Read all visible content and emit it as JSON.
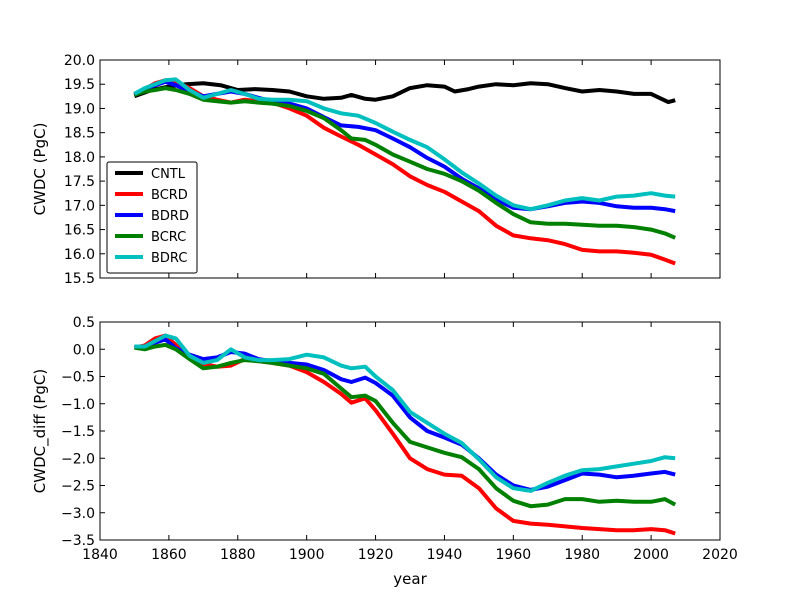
{
  "chart_data": [
    {
      "type": "line",
      "title": "",
      "xlabel": "",
      "ylabel": "CWDC (PgC)",
      "xlim": [
        1840,
        2020
      ],
      "ylim": [
        15.5,
        20.0
      ],
      "xticks": [
        1840,
        1860,
        1880,
        1900,
        1920,
        1940,
        1960,
        1980,
        2000,
        2020
      ],
      "xtick_labels": [
        "",
        "",
        "",
        "",
        "",
        "",
        "",
        "",
        "",
        ""
      ],
      "yticks": [
        15.5,
        16.0,
        16.5,
        17.0,
        17.5,
        18.0,
        18.5,
        19.0,
        19.5,
        20.0
      ],
      "ytick_labels": [
        "15.5",
        "16.0",
        "16.5",
        "17.0",
        "17.5",
        "18.0",
        "18.5",
        "19.0",
        "19.5",
        "20.0"
      ],
      "legend_location": "lower-left",
      "series": [
        {
          "name": "CNTL",
          "color": "#000000",
          "x": [
            1850,
            1855,
            1860,
            1865,
            1870,
            1875,
            1880,
            1885,
            1890,
            1895,
            1900,
            1905,
            1910,
            1913,
            1917,
            1920,
            1925,
            1930,
            1935,
            1940,
            1943,
            1947,
            1950,
            1955,
            1960,
            1965,
            1970,
            1975,
            1980,
            1985,
            1990,
            1995,
            2000,
            2003,
            2005,
            2007
          ],
          "y": [
            19.25,
            19.38,
            19.45,
            19.5,
            19.52,
            19.48,
            19.38,
            19.4,
            19.38,
            19.35,
            19.25,
            19.2,
            19.22,
            19.28,
            19.2,
            19.18,
            19.25,
            19.42,
            19.48,
            19.45,
            19.35,
            19.4,
            19.45,
            19.5,
            19.48,
            19.52,
            19.5,
            19.42,
            19.35,
            19.38,
            19.35,
            19.3,
            19.3,
            19.2,
            19.13,
            19.17
          ]
        },
        {
          "name": "BCRD",
          "color": "#ff0000",
          "x": [
            1850,
            1853,
            1856,
            1859,
            1862,
            1866,
            1870,
            1874,
            1878,
            1882,
            1886,
            1890,
            1895,
            1900,
            1905,
            1910,
            1915,
            1920,
            1925,
            1930,
            1935,
            1940,
            1945,
            1950,
            1955,
            1960,
            1965,
            1970,
            1975,
            1980,
            1985,
            1990,
            1995,
            2000,
            2004,
            2007
          ],
          "y": [
            19.28,
            19.4,
            19.52,
            19.58,
            19.55,
            19.42,
            19.25,
            19.18,
            19.12,
            19.18,
            19.15,
            19.12,
            19.0,
            18.85,
            18.6,
            18.42,
            18.25,
            18.05,
            17.85,
            17.6,
            17.42,
            17.28,
            17.08,
            16.88,
            16.58,
            16.38,
            16.32,
            16.28,
            16.2,
            16.08,
            16.05,
            16.05,
            16.02,
            15.98,
            15.88,
            15.8
          ]
        },
        {
          "name": "BDRD",
          "color": "#0000ff",
          "x": [
            1850,
            1853,
            1856,
            1859,
            1862,
            1866,
            1870,
            1874,
            1878,
            1882,
            1886,
            1890,
            1895,
            1900,
            1905,
            1910,
            1915,
            1920,
            1925,
            1930,
            1935,
            1940,
            1945,
            1950,
            1955,
            1960,
            1965,
            1970,
            1975,
            1980,
            1985,
            1990,
            1995,
            2000,
            2004,
            2007
          ],
          "y": [
            19.3,
            19.4,
            19.48,
            19.55,
            19.48,
            19.35,
            19.25,
            19.3,
            19.35,
            19.3,
            19.22,
            19.15,
            19.1,
            19.0,
            18.82,
            18.65,
            18.62,
            18.55,
            18.38,
            18.2,
            17.98,
            17.8,
            17.55,
            17.35,
            17.12,
            16.95,
            16.92,
            16.98,
            17.05,
            17.08,
            17.05,
            16.98,
            16.95,
            16.95,
            16.92,
            16.88
          ]
        },
        {
          "name": "BCRC",
          "color": "#008000",
          "x": [
            1850,
            1853,
            1856,
            1859,
            1862,
            1866,
            1870,
            1874,
            1878,
            1882,
            1886,
            1890,
            1895,
            1900,
            1905,
            1910,
            1913,
            1917,
            1920,
            1925,
            1930,
            1935,
            1940,
            1945,
            1950,
            1955,
            1960,
            1965,
            1970,
            1975,
            1980,
            1985,
            1990,
            1995,
            2000,
            2004,
            2007
          ],
          "y": [
            19.28,
            19.35,
            19.38,
            19.42,
            19.38,
            19.3,
            19.18,
            19.15,
            19.12,
            19.15,
            19.12,
            19.1,
            19.05,
            18.95,
            18.8,
            18.55,
            18.38,
            18.35,
            18.25,
            18.05,
            17.9,
            17.75,
            17.65,
            17.5,
            17.3,
            17.05,
            16.82,
            16.65,
            16.62,
            16.62,
            16.6,
            16.58,
            16.58,
            16.55,
            16.5,
            16.42,
            16.33
          ]
        },
        {
          "name": "BDRC",
          "color": "#00bfbf",
          "x": [
            1850,
            1853,
            1856,
            1859,
            1862,
            1866,
            1870,
            1874,
            1878,
            1882,
            1886,
            1890,
            1895,
            1900,
            1905,
            1910,
            1915,
            1920,
            1925,
            1930,
            1935,
            1940,
            1945,
            1950,
            1955,
            1960,
            1965,
            1970,
            1975,
            1980,
            1985,
            1990,
            1995,
            2000,
            2004,
            2007
          ],
          "y": [
            19.3,
            19.42,
            19.5,
            19.58,
            19.6,
            19.38,
            19.22,
            19.3,
            19.38,
            19.3,
            19.2,
            19.18,
            19.18,
            19.15,
            19.0,
            18.9,
            18.85,
            18.7,
            18.52,
            18.35,
            18.2,
            17.95,
            17.68,
            17.45,
            17.2,
            17.0,
            16.92,
            17.0,
            17.1,
            17.15,
            17.1,
            17.18,
            17.2,
            17.25,
            17.2,
            17.18
          ]
        }
      ]
    },
    {
      "type": "line",
      "title": "",
      "xlabel": "year",
      "ylabel": "CWDC_diff (PgC)",
      "xlim": [
        1840,
        2020
      ],
      "ylim": [
        -3.5,
        0.5
      ],
      "xticks": [
        1840,
        1860,
        1880,
        1900,
        1920,
        1940,
        1960,
        1980,
        2000,
        2020
      ],
      "xtick_labels": [
        "1840",
        "1860",
        "1880",
        "1900",
        "1920",
        "1940",
        "1960",
        "1980",
        "2000",
        "2020"
      ],
      "yticks": [
        -3.5,
        -3.0,
        -2.5,
        -2.0,
        -1.5,
        -1.0,
        -0.5,
        0.0,
        0.5
      ],
      "ytick_labels": [
        "−3.5",
        "−3.0",
        "−2.5",
        "−2.0",
        "−1.5",
        "−1.0",
        "−0.5",
        "0.0",
        "0.5"
      ],
      "series": [
        {
          "name": "BCRD",
          "color": "#ff0000",
          "x": [
            1850,
            1853,
            1856,
            1859,
            1862,
            1866,
            1870,
            1874,
            1878,
            1882,
            1886,
            1890,
            1895,
            1900,
            1905,
            1910,
            1913,
            1917,
            1920,
            1925,
            1930,
            1935,
            1940,
            1945,
            1950,
            1955,
            1960,
            1965,
            1970,
            1975,
            1980,
            1985,
            1990,
            1995,
            2000,
            2004,
            2007
          ],
          "y": [
            0.03,
            0.07,
            0.2,
            0.25,
            0.08,
            -0.12,
            -0.27,
            -0.32,
            -0.3,
            -0.18,
            -0.22,
            -0.25,
            -0.3,
            -0.42,
            -0.6,
            -0.82,
            -0.98,
            -0.9,
            -1.12,
            -1.55,
            -2.0,
            -2.2,
            -2.3,
            -2.32,
            -2.55,
            -2.92,
            -3.15,
            -3.2,
            -3.22,
            -3.25,
            -3.28,
            -3.3,
            -3.32,
            -3.32,
            -3.3,
            -3.32,
            -3.38
          ]
        },
        {
          "name": "BDRD",
          "color": "#0000ff",
          "x": [
            1850,
            1853,
            1856,
            1859,
            1862,
            1866,
            1870,
            1874,
            1878,
            1882,
            1886,
            1890,
            1895,
            1900,
            1905,
            1910,
            1913,
            1917,
            1920,
            1925,
            1930,
            1935,
            1940,
            1945,
            1950,
            1955,
            1960,
            1965,
            1970,
            1975,
            1980,
            1985,
            1990,
            1995,
            2000,
            2004,
            2007
          ],
          "y": [
            0.05,
            0.03,
            0.12,
            0.18,
            0.02,
            -0.1,
            -0.18,
            -0.15,
            -0.05,
            -0.08,
            -0.18,
            -0.22,
            -0.25,
            -0.28,
            -0.38,
            -0.55,
            -0.6,
            -0.52,
            -0.62,
            -0.85,
            -1.25,
            -1.5,
            -1.62,
            -1.75,
            -2.0,
            -2.3,
            -2.5,
            -2.58,
            -2.52,
            -2.4,
            -2.28,
            -2.3,
            -2.35,
            -2.32,
            -2.28,
            -2.25,
            -2.3
          ]
        },
        {
          "name": "BCRC",
          "color": "#008000",
          "x": [
            1850,
            1853,
            1856,
            1859,
            1862,
            1866,
            1870,
            1874,
            1878,
            1882,
            1886,
            1890,
            1895,
            1900,
            1905,
            1910,
            1913,
            1917,
            1920,
            1925,
            1930,
            1935,
            1940,
            1945,
            1950,
            1955,
            1960,
            1965,
            1970,
            1975,
            1980,
            1985,
            1990,
            1995,
            2000,
            2004,
            2007
          ],
          "y": [
            0.03,
            0.0,
            0.05,
            0.08,
            0.0,
            -0.18,
            -0.35,
            -0.32,
            -0.25,
            -0.2,
            -0.22,
            -0.25,
            -0.3,
            -0.35,
            -0.45,
            -0.72,
            -0.88,
            -0.85,
            -0.95,
            -1.35,
            -1.7,
            -1.8,
            -1.9,
            -1.98,
            -2.2,
            -2.55,
            -2.78,
            -2.88,
            -2.85,
            -2.75,
            -2.75,
            -2.8,
            -2.78,
            -2.8,
            -2.8,
            -2.75,
            -2.85
          ]
        },
        {
          "name": "BDRC",
          "color": "#00bfbf",
          "x": [
            1850,
            1853,
            1856,
            1859,
            1862,
            1866,
            1870,
            1874,
            1878,
            1882,
            1886,
            1890,
            1895,
            1900,
            1905,
            1910,
            1913,
            1917,
            1920,
            1925,
            1930,
            1935,
            1940,
            1945,
            1950,
            1955,
            1960,
            1965,
            1970,
            1975,
            1980,
            1985,
            1990,
            1995,
            2000,
            2004,
            2007
          ],
          "y": [
            0.05,
            0.05,
            0.15,
            0.25,
            0.2,
            -0.12,
            -0.25,
            -0.2,
            0.0,
            -0.15,
            -0.2,
            -0.2,
            -0.18,
            -0.1,
            -0.15,
            -0.3,
            -0.35,
            -0.32,
            -0.5,
            -0.75,
            -1.15,
            -1.35,
            -1.55,
            -1.72,
            -2.02,
            -2.35,
            -2.55,
            -2.6,
            -2.45,
            -2.32,
            -2.22,
            -2.2,
            -2.15,
            -2.1,
            -2.05,
            -1.98,
            -2.0
          ]
        }
      ]
    }
  ]
}
